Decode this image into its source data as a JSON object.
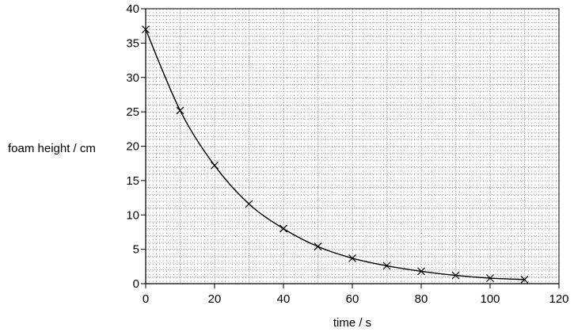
{
  "chart_data": {
    "type": "scatter",
    "title": "",
    "xlabel": "time / s",
    "ylabel": "foam height / cm",
    "xlim": [
      0,
      120
    ],
    "ylim": [
      0,
      40
    ],
    "x_ticks": [
      0,
      20,
      40,
      60,
      80,
      100,
      120
    ],
    "y_ticks": [
      0,
      5,
      10,
      15,
      20,
      25,
      30,
      35,
      40
    ],
    "x_tick_labels": [
      "0",
      "20",
      "40",
      "60",
      "80",
      "100",
      "120"
    ],
    "y_tick_labels": [
      "0",
      "5",
      "10",
      "15",
      "20",
      "25",
      "30",
      "35",
      "40"
    ],
    "grid": true,
    "marker": "x",
    "fitted_curve": "smooth decay curve through the points",
    "series": [
      {
        "x": [
          0,
          10,
          20,
          30,
          40,
          50,
          60,
          70,
          80,
          90,
          100,
          110
        ],
        "y": [
          37.0,
          25.2,
          17.2,
          11.6,
          8.0,
          5.4,
          3.7,
          2.6,
          1.8,
          1.2,
          0.8,
          0.6
        ]
      }
    ],
    "colors": {
      "line": "#000000",
      "grid": "#9a9a9a",
      "background": "#ffffff"
    }
  }
}
